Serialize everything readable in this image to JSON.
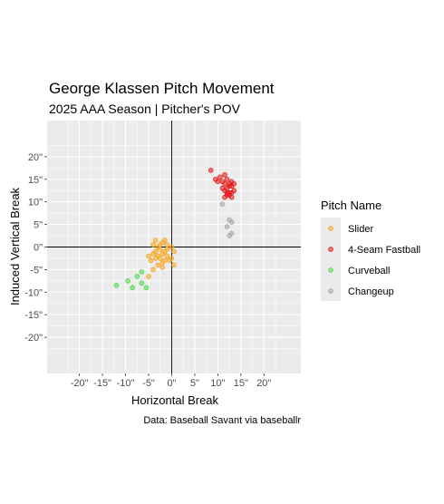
{
  "chart_data": {
    "type": "scatter",
    "title": "George Klassen Pitch Movement",
    "subtitle": "2025 AAA Season | Pitcher's POV",
    "xlabel": "Horizontal Break",
    "ylabel": "Induced Vertical Break",
    "caption": "Data: Baseball Savant via baseballr",
    "xlim": [
      -27,
      28
    ],
    "ylim": [
      -28,
      28
    ],
    "x_ticks": [
      -20,
      -15,
      -10,
      -5,
      0,
      5,
      10,
      15,
      20
    ],
    "x_tick_labels": [
      "-20\"",
      "-15\"",
      "-10\"",
      "-5\"",
      "0\"",
      "5\"",
      "10\"",
      "15\"",
      "20\""
    ],
    "y_ticks": [
      20,
      15,
      10,
      5,
      0,
      -5,
      -10,
      -15,
      -20
    ],
    "y_tick_labels": [
      "20\"",
      "15\"",
      "10\"",
      "5\"",
      "0\"",
      "-5\"",
      "-10\"",
      "-15\"",
      "-20\""
    ],
    "grid": true,
    "legend": {
      "title": "Pitch Name",
      "position": "right"
    },
    "series": [
      {
        "name": "Slider",
        "color": "#f5a623",
        "points": [
          [
            -2.0,
            1.0
          ],
          [
            -1.0,
            0.5
          ],
          [
            0.0,
            0.0
          ],
          [
            -3.0,
            0.0
          ],
          [
            -4.0,
            0.5
          ],
          [
            -2.5,
            -0.5
          ],
          [
            -1.5,
            -1.0
          ],
          [
            -3.5,
            -1.0
          ],
          [
            -2.0,
            -1.5
          ],
          [
            -1.0,
            -2.0
          ],
          [
            -3.0,
            -2.0
          ],
          [
            -4.0,
            -1.5
          ],
          [
            -2.5,
            -2.5
          ],
          [
            -1.5,
            -3.0
          ],
          [
            -3.5,
            -2.5
          ],
          [
            -4.5,
            -3.0
          ],
          [
            -2.0,
            -3.5
          ],
          [
            -0.5,
            -3.0
          ],
          [
            0.5,
            -1.0
          ],
          [
            -5.0,
            -2.0
          ],
          [
            -3.0,
            -4.0
          ],
          [
            -4.0,
            -5.0
          ],
          [
            -5.0,
            -6.5
          ],
          [
            -2.0,
            -4.5
          ],
          [
            0.0,
            -2.5
          ],
          [
            0.5,
            -4.0
          ],
          [
            -1.0,
            -0.5
          ],
          [
            -2.5,
            0.5
          ],
          [
            -3.5,
            1.5
          ],
          [
            -1.5,
            1.5
          ]
        ]
      },
      {
        "name": "4-Seam Fastball",
        "color": "#e41a1c",
        "points": [
          [
            8.5,
            17.0
          ],
          [
            9.5,
            15.0
          ],
          [
            10.5,
            15.5
          ],
          [
            11.0,
            14.5
          ],
          [
            11.5,
            16.0
          ],
          [
            12.0,
            15.0
          ],
          [
            12.5,
            14.0
          ],
          [
            13.0,
            13.5
          ],
          [
            12.0,
            13.0
          ],
          [
            11.5,
            12.5
          ],
          [
            12.5,
            12.0
          ],
          [
            13.5,
            12.5
          ],
          [
            12.0,
            11.5
          ],
          [
            11.5,
            11.0
          ],
          [
            13.0,
            11.0
          ],
          [
            12.5,
            13.5
          ],
          [
            13.5,
            14.0
          ],
          [
            10.0,
            14.5
          ],
          [
            12.0,
            12.0
          ],
          [
            13.0,
            12.0
          ],
          [
            11.0,
            13.0
          ],
          [
            12.5,
            11.5
          ],
          [
            13.0,
            14.5
          ],
          [
            11.5,
            14.0
          ]
        ]
      },
      {
        "name": "Curveball",
        "color": "#4ddb4d",
        "points": [
          [
            -12.0,
            -8.5
          ],
          [
            -9.5,
            -7.5
          ],
          [
            -8.5,
            -9.0
          ],
          [
            -7.5,
            -6.5
          ],
          [
            -6.5,
            -5.5
          ],
          [
            -6.5,
            -8.0
          ],
          [
            -5.5,
            -9.0
          ]
        ]
      },
      {
        "name": "Changeup",
        "color": "#a6a6a6",
        "points": [
          [
            11.0,
            9.5
          ],
          [
            12.5,
            6.0
          ],
          [
            12.0,
            4.5
          ],
          [
            13.0,
            5.5
          ],
          [
            12.5,
            2.5
          ],
          [
            13.0,
            3.0
          ]
        ]
      }
    ]
  }
}
